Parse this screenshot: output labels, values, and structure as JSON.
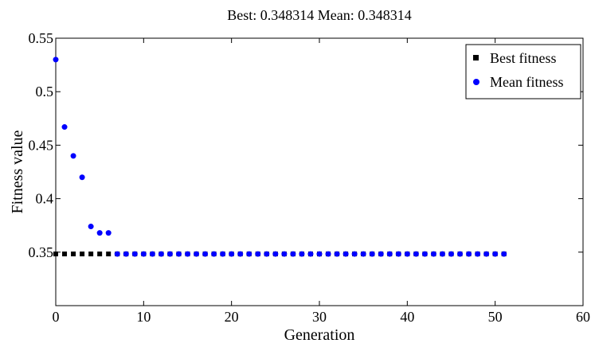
{
  "chart_data": {
    "type": "scatter",
    "title": "Best: 0.348314 Mean: 0.348314",
    "xlabel": "Generation",
    "ylabel": "Fitness value",
    "xlim": [
      0,
      60
    ],
    "ylim": [
      0.3,
      0.55
    ],
    "x_ticks": [
      "0",
      "10",
      "20",
      "30",
      "40",
      "50",
      "60"
    ],
    "y_ticks": [
      "0.35",
      "0.4",
      "0.45",
      "0.5",
      "0.55"
    ],
    "grid": false,
    "legend_position": "top-right",
    "x": [
      0,
      1,
      2,
      3,
      4,
      5,
      6,
      7,
      8,
      9,
      10,
      11,
      12,
      13,
      14,
      15,
      16,
      17,
      18,
      19,
      20,
      21,
      22,
      23,
      24,
      25,
      26,
      27,
      28,
      29,
      30,
      31,
      32,
      33,
      34,
      35,
      36,
      37,
      38,
      39,
      40,
      41,
      42,
      43,
      44,
      45,
      46,
      47,
      48,
      49,
      50,
      51
    ],
    "series": [
      {
        "name": "Best fitness",
        "marker": "square",
        "color": "#000000",
        "values": [
          0.348314,
          0.348314,
          0.348314,
          0.348314,
          0.348314,
          0.348314,
          0.348314,
          0.348314,
          0.348314,
          0.348314,
          0.348314,
          0.348314,
          0.348314,
          0.348314,
          0.348314,
          0.348314,
          0.348314,
          0.348314,
          0.348314,
          0.348314,
          0.348314,
          0.348314,
          0.348314,
          0.348314,
          0.348314,
          0.348314,
          0.348314,
          0.348314,
          0.348314,
          0.348314,
          0.348314,
          0.348314,
          0.348314,
          0.348314,
          0.348314,
          0.348314,
          0.348314,
          0.348314,
          0.348314,
          0.348314,
          0.348314,
          0.348314,
          0.348314,
          0.348314,
          0.348314,
          0.348314,
          0.348314,
          0.348314,
          0.348314,
          0.348314,
          0.348314,
          0.348314
        ]
      },
      {
        "name": "Mean fitness",
        "marker": "circle",
        "color": "#0000ff",
        "values": [
          0.53,
          0.467,
          0.44,
          0.42,
          0.374,
          0.368,
          0.368,
          0.348314,
          0.348314,
          0.348314,
          0.348314,
          0.348314,
          0.348314,
          0.348314,
          0.348314,
          0.348314,
          0.348314,
          0.348314,
          0.348314,
          0.348314,
          0.348314,
          0.348314,
          0.348314,
          0.348314,
          0.348314,
          0.348314,
          0.348314,
          0.348314,
          0.348314,
          0.348314,
          0.348314,
          0.348314,
          0.348314,
          0.348314,
          0.348314,
          0.348314,
          0.348314,
          0.348314,
          0.348314,
          0.348314,
          0.348314,
          0.348314,
          0.348314,
          0.348314,
          0.348314,
          0.348314,
          0.348314,
          0.348314,
          0.348314,
          0.348314,
          0.348314,
          0.348314
        ]
      }
    ]
  }
}
